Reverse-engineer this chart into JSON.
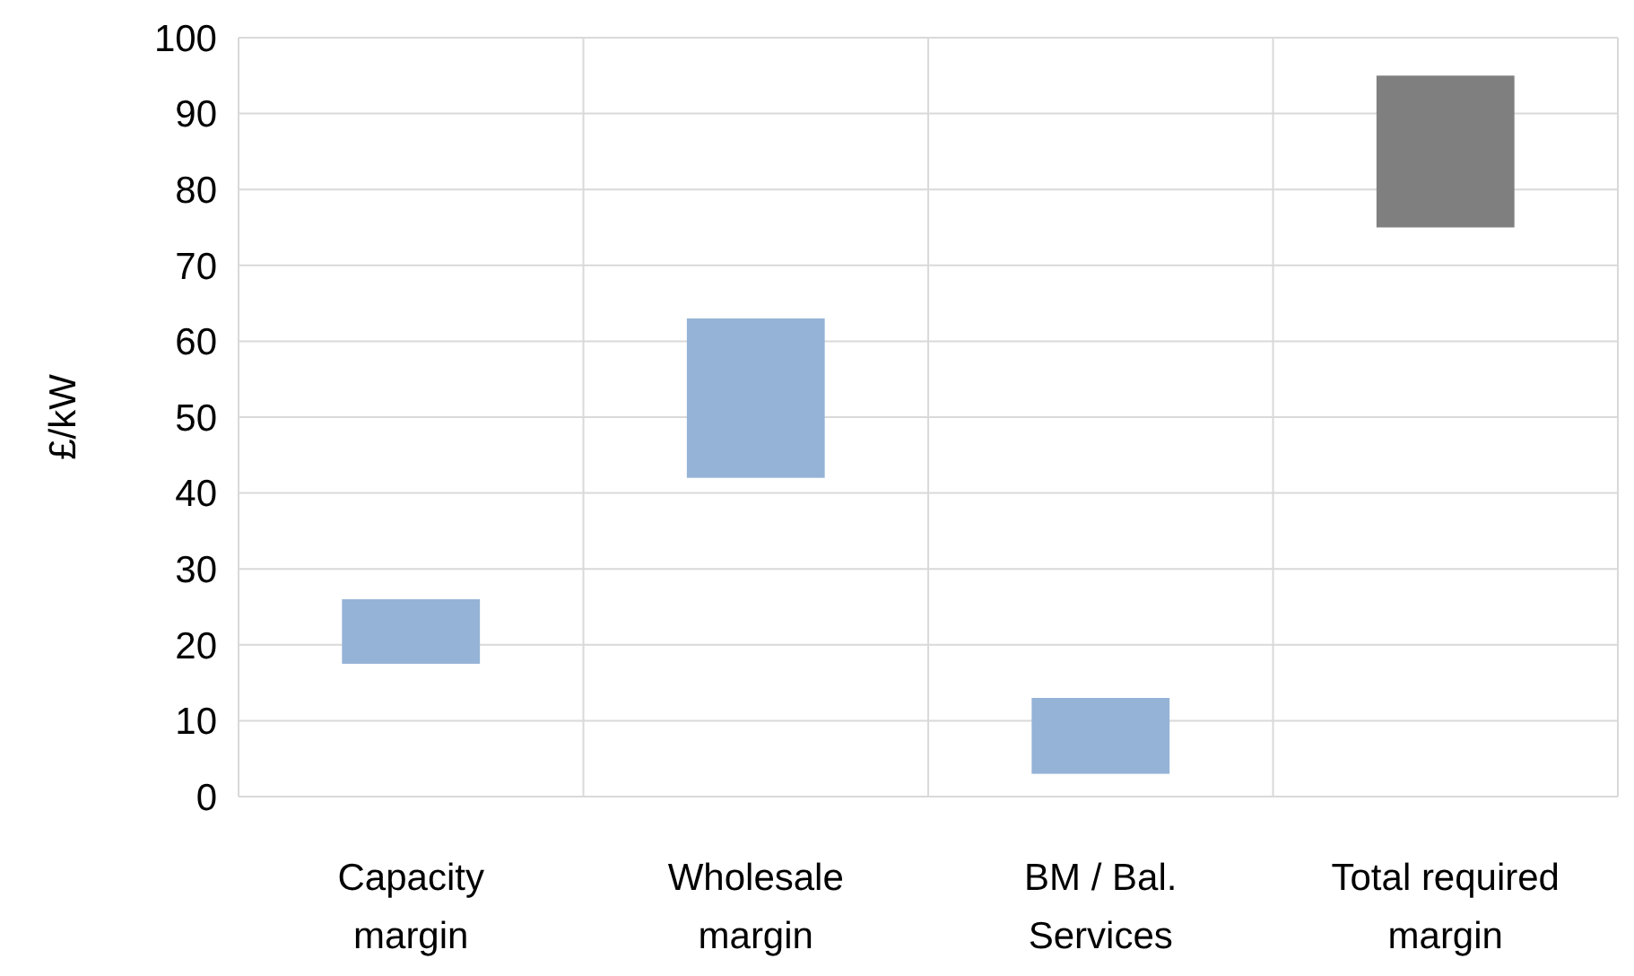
{
  "chart_data": {
    "type": "bar",
    "ylabel": "£/kW",
    "categories": [
      "Capacity\nmargin",
      "Wholesale\nmargin",
      "BM / Bal.\nServices",
      "Total required\nmargin"
    ],
    "base": [
      17.5,
      42,
      3,
      75
    ],
    "values": [
      8.5,
      21,
      10,
      20
    ],
    "colors": [
      "#95b3d7",
      "#95b3d7",
      "#95b3d7",
      "#7f7f7f"
    ],
    "ylim": [
      0,
      100
    ],
    "yticks": [
      0,
      10,
      20,
      30,
      40,
      50,
      60,
      70,
      80,
      90,
      100
    ],
    "grid": true
  }
}
